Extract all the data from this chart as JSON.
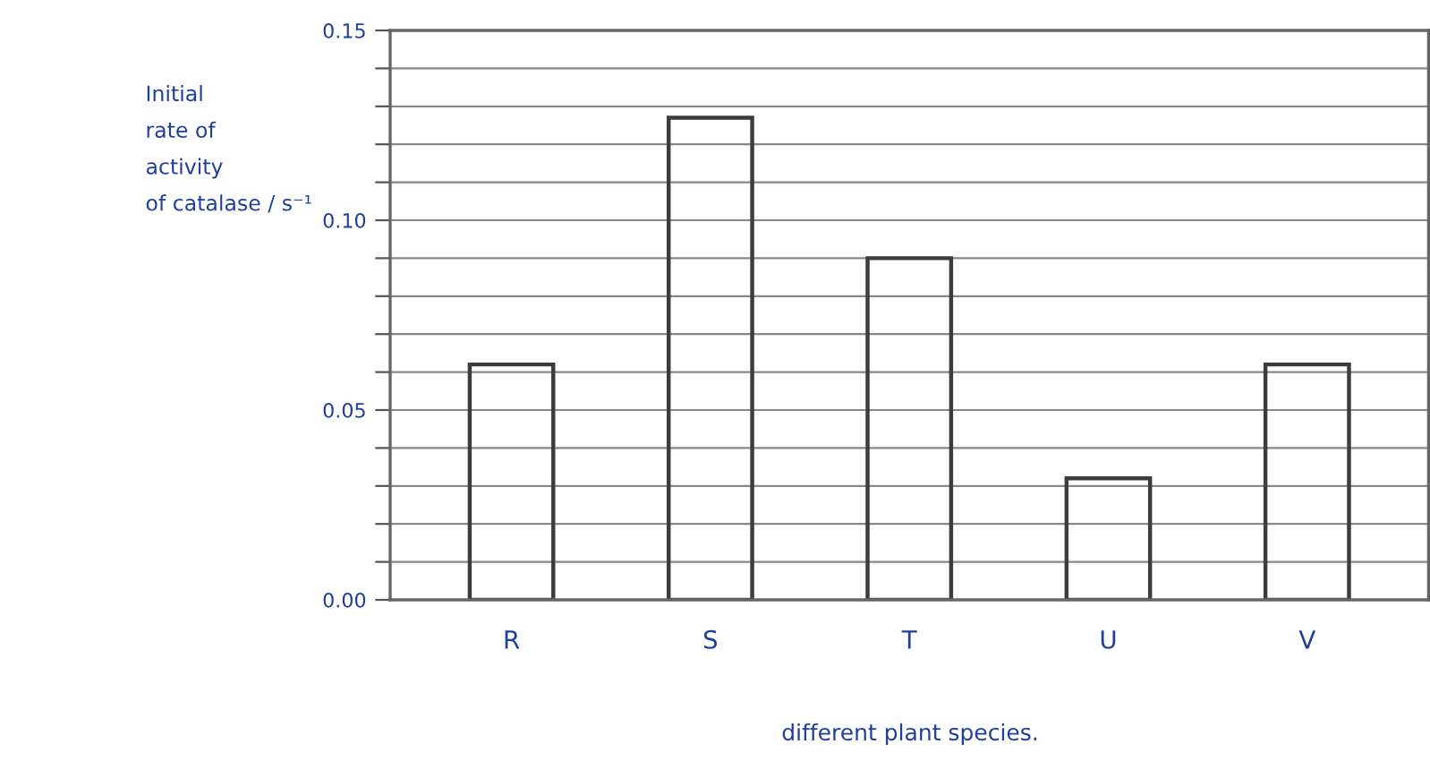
{
  "chart_data": {
    "type": "bar",
    "ylabel": "Initial\nrate of\nactivity\nof catalase / s⁻¹",
    "xlabel": "different plant species.",
    "categories": [
      "R",
      "S",
      "T",
      "U",
      "V"
    ],
    "values": [
      0.062,
      0.127,
      0.09,
      0.032,
      0.062
    ],
    "color": "#3c3c3c",
    "ylim": [
      0,
      0.15
    ],
    "yticks": [
      {
        "value": 0,
        "label": "0.00"
      },
      {
        "value": 0.01,
        "label": null
      },
      {
        "value": 0.02,
        "label": null
      },
      {
        "value": 0.03,
        "label": null
      },
      {
        "value": 0.04,
        "label": null
      },
      {
        "value": 0.05,
        "label": "0.05"
      },
      {
        "value": 0.06,
        "label": null
      },
      {
        "value": 0.07,
        "label": null
      },
      {
        "value": 0.08,
        "label": null
      },
      {
        "value": 0.09,
        "label": null
      },
      {
        "value": 0.1,
        "label": "0.10"
      },
      {
        "value": 0.11,
        "label": null
      },
      {
        "value": 0.12,
        "label": null
      },
      {
        "value": 0.13,
        "label": null
      },
      {
        "value": 0.14,
        "label": null
      },
      {
        "value": 0.15,
        "label": "0.15"
      }
    ],
    "grid": "y"
  }
}
